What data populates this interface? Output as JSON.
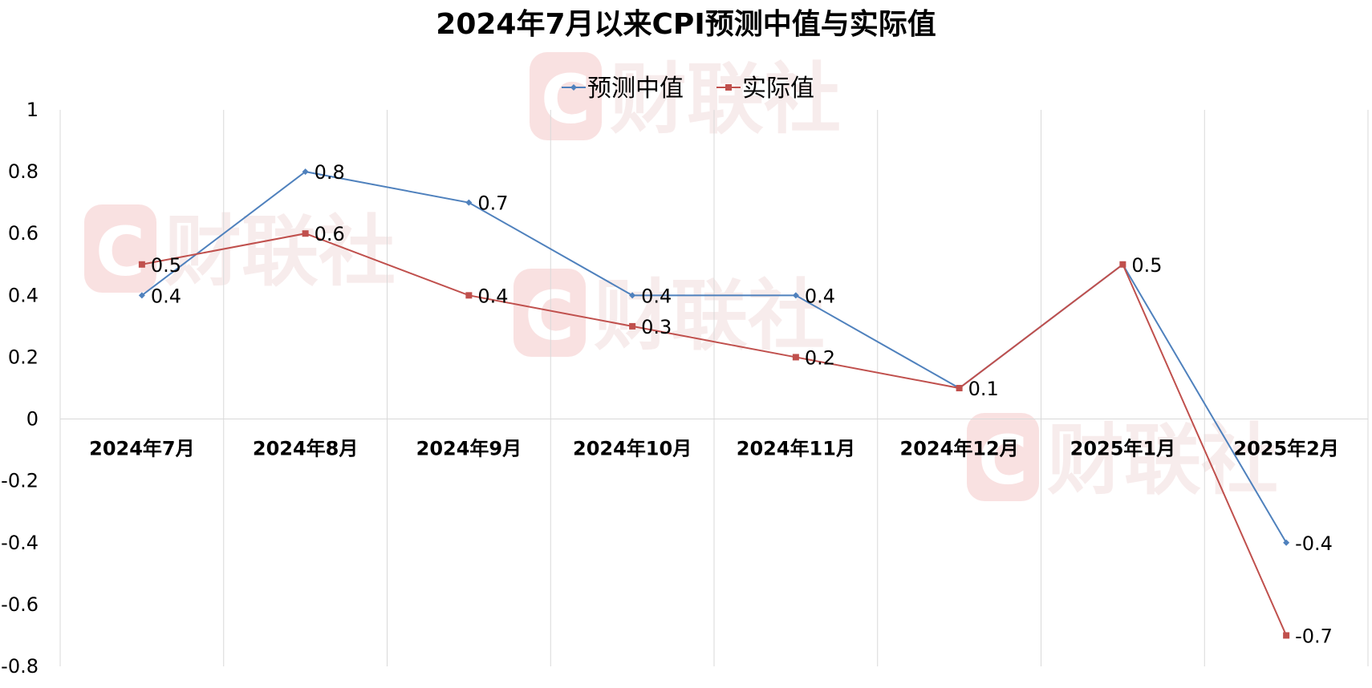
{
  "chart_data": {
    "type": "line",
    "title": "2024年7月以来CPI预测中值与实际值",
    "categories": [
      "2024年7月",
      "2024年8月",
      "2024年9月",
      "2024年10月",
      "2024年11月",
      "2024年12月",
      "2025年1月",
      "2025年2月"
    ],
    "series": [
      {
        "name": "预测中值",
        "color": "#4f81bd",
        "marker": "diamond",
        "values": [
          0.4,
          0.8,
          0.7,
          0.4,
          0.4,
          0.1,
          0.5,
          -0.4
        ],
        "labels": [
          "0.4",
          "0.8",
          "0.7",
          "0.4",
          "0.4",
          "",
          "0.5",
          "-0.4"
        ]
      },
      {
        "name": "实际值",
        "color": "#c0504d",
        "marker": "square",
        "values": [
          0.5,
          0.6,
          0.4,
          0.3,
          0.2,
          0.1,
          0.5,
          -0.7
        ],
        "labels": [
          "0.5",
          "0.6",
          "0.4",
          "0.3",
          "0.2",
          "0.1",
          "",
          "-0.7"
        ]
      }
    ],
    "y_ticks": [
      "1",
      "0.8",
      "0.6",
      "0.4",
      "0.2",
      "0",
      "-0.2",
      "-0.4",
      "-0.6",
      "-0.8"
    ],
    "ylim": [
      -0.8,
      1
    ],
    "xlabel": "",
    "ylabel": "",
    "legend_position": "top-center",
    "grid": "vertical"
  },
  "watermark": {
    "text": "财联社",
    "logo_glyph": "C"
  }
}
